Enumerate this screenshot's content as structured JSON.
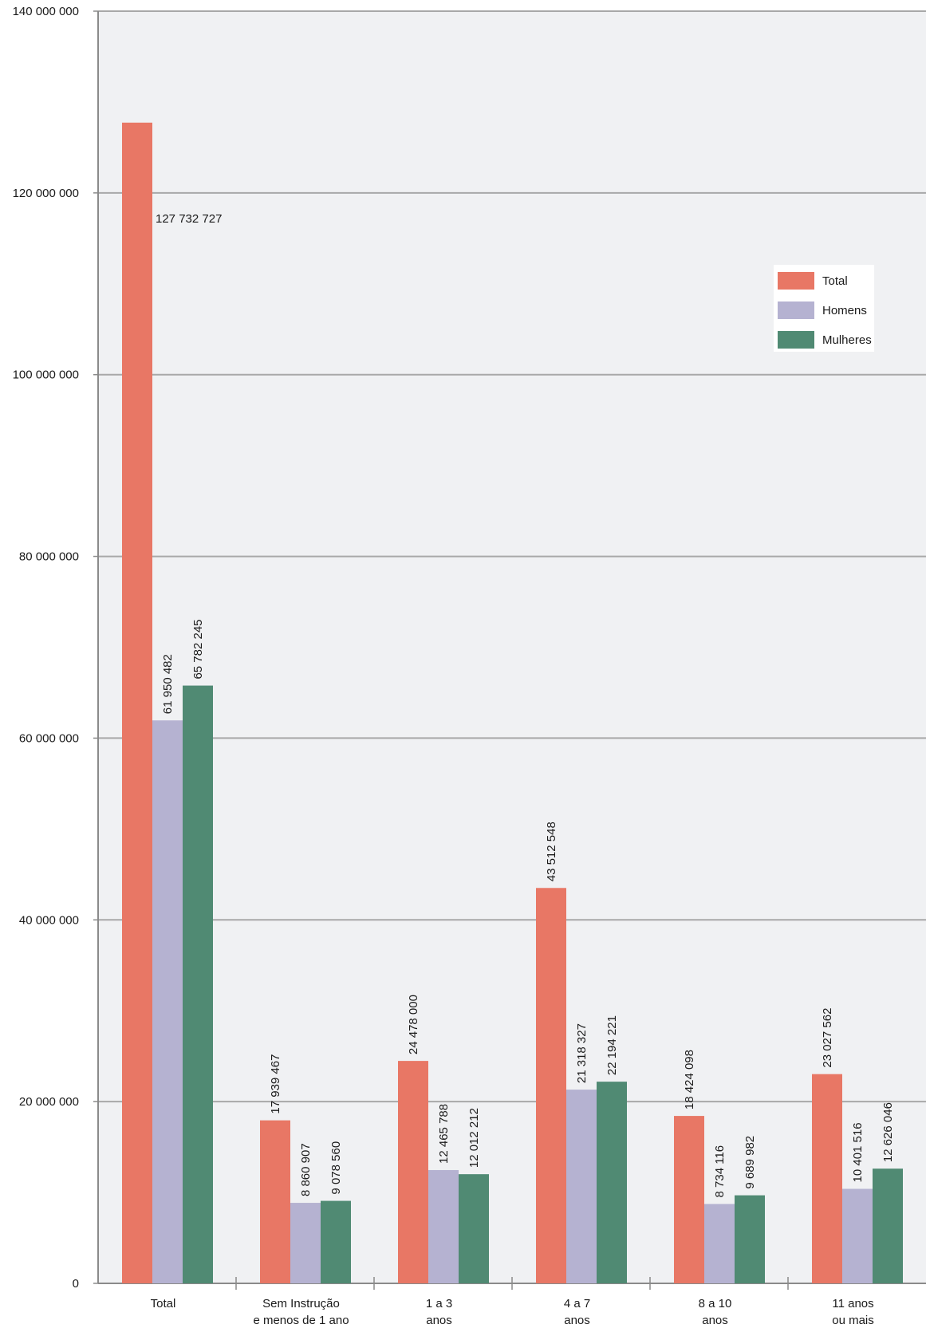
{
  "chart_data": {
    "type": "bar",
    "title": "",
    "xlabel": "",
    "ylabel": "",
    "ylim": [
      0,
      140000000
    ],
    "yticks": [
      0,
      20000000,
      40000000,
      60000000,
      80000000,
      100000000,
      120000000,
      140000000
    ],
    "ytick_labels": [
      "0",
      "20 000 000",
      "40 000 000",
      "60 000 000",
      "80 000 000",
      "100 000 000",
      "120 000 000",
      "140 000 000"
    ],
    "grid": true,
    "legend_position": "right",
    "categories": [
      [
        "Total"
      ],
      [
        "Sem Instrução",
        "e menos de 1 ano"
      ],
      [
        "1 a 3",
        "anos"
      ],
      [
        "4 a 7",
        "anos"
      ],
      [
        "8 a 10",
        "anos"
      ],
      [
        "11 anos",
        "ou mais"
      ]
    ],
    "series": [
      {
        "name": "Total",
        "color": "#e87765",
        "values": [
          127732727,
          17939467,
          24478000,
          43512548,
          18424098,
          23027562
        ],
        "labels": [
          "127 732 727",
          "17 939 467",
          "24 478 000",
          "43 512 548",
          "18 424 098",
          "23 027 562"
        ]
      },
      {
        "name": "Homens",
        "color": "#b5b2d1",
        "values": [
          61950482,
          8860907,
          12465788,
          21318327,
          8734116,
          10401516
        ],
        "labels": [
          "61 950 482",
          "8 860 907",
          "12 465 788",
          "21 318 327",
          "8 734 116",
          "10 401 516"
        ]
      },
      {
        "name": "Mulheres",
        "color": "#508a73",
        "values": [
          65782245,
          9078560,
          12012212,
          22194221,
          9689982,
          12626046
        ],
        "labels": [
          "65 782 245",
          "9 078 560",
          "12 012 212",
          "22 194 221",
          "9 689 982",
          "12 626 046"
        ]
      }
    ]
  },
  "colors": {
    "plot_background": "#f0f1f3",
    "gridline": "#a8a8a8",
    "axis": "#8a8a8a"
  }
}
